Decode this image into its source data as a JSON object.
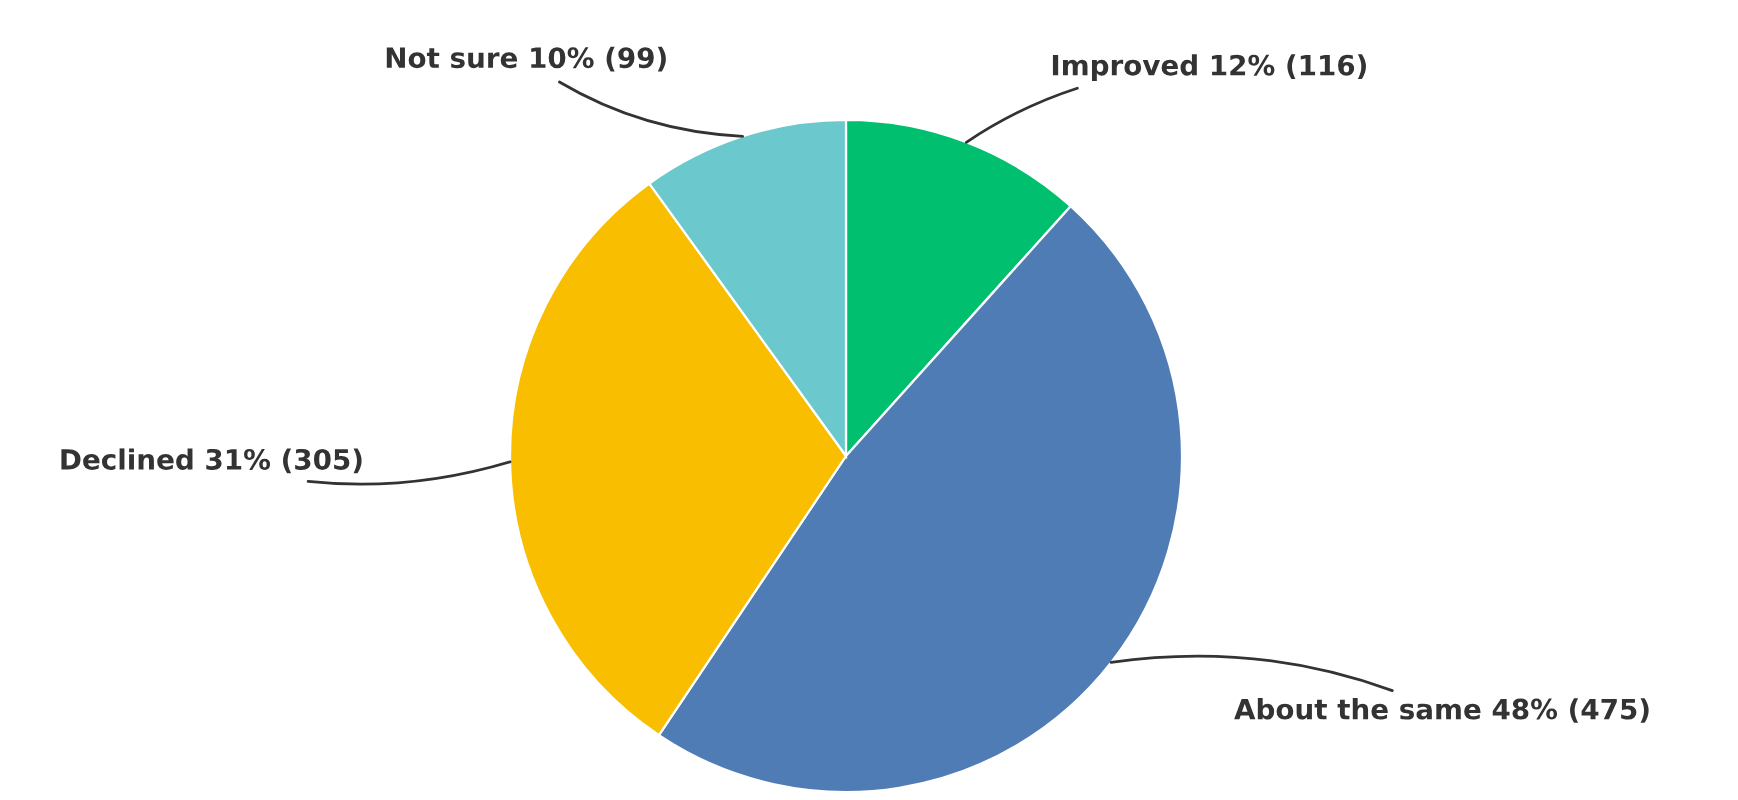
{
  "chart_data": {
    "type": "pie",
    "categories": [
      "Improved",
      "About the same",
      "Declined",
      "Not sure"
    ],
    "values": [
      116,
      475,
      305,
      99
    ],
    "value_labels": [
      "12% (116)",
      "48% (475)",
      "31% (305)",
      "10% (99)"
    ],
    "colors": [
      "#00bf6f",
      "#507cb6",
      "#f9be00",
      "#6bc8cd"
    ]
  }
}
